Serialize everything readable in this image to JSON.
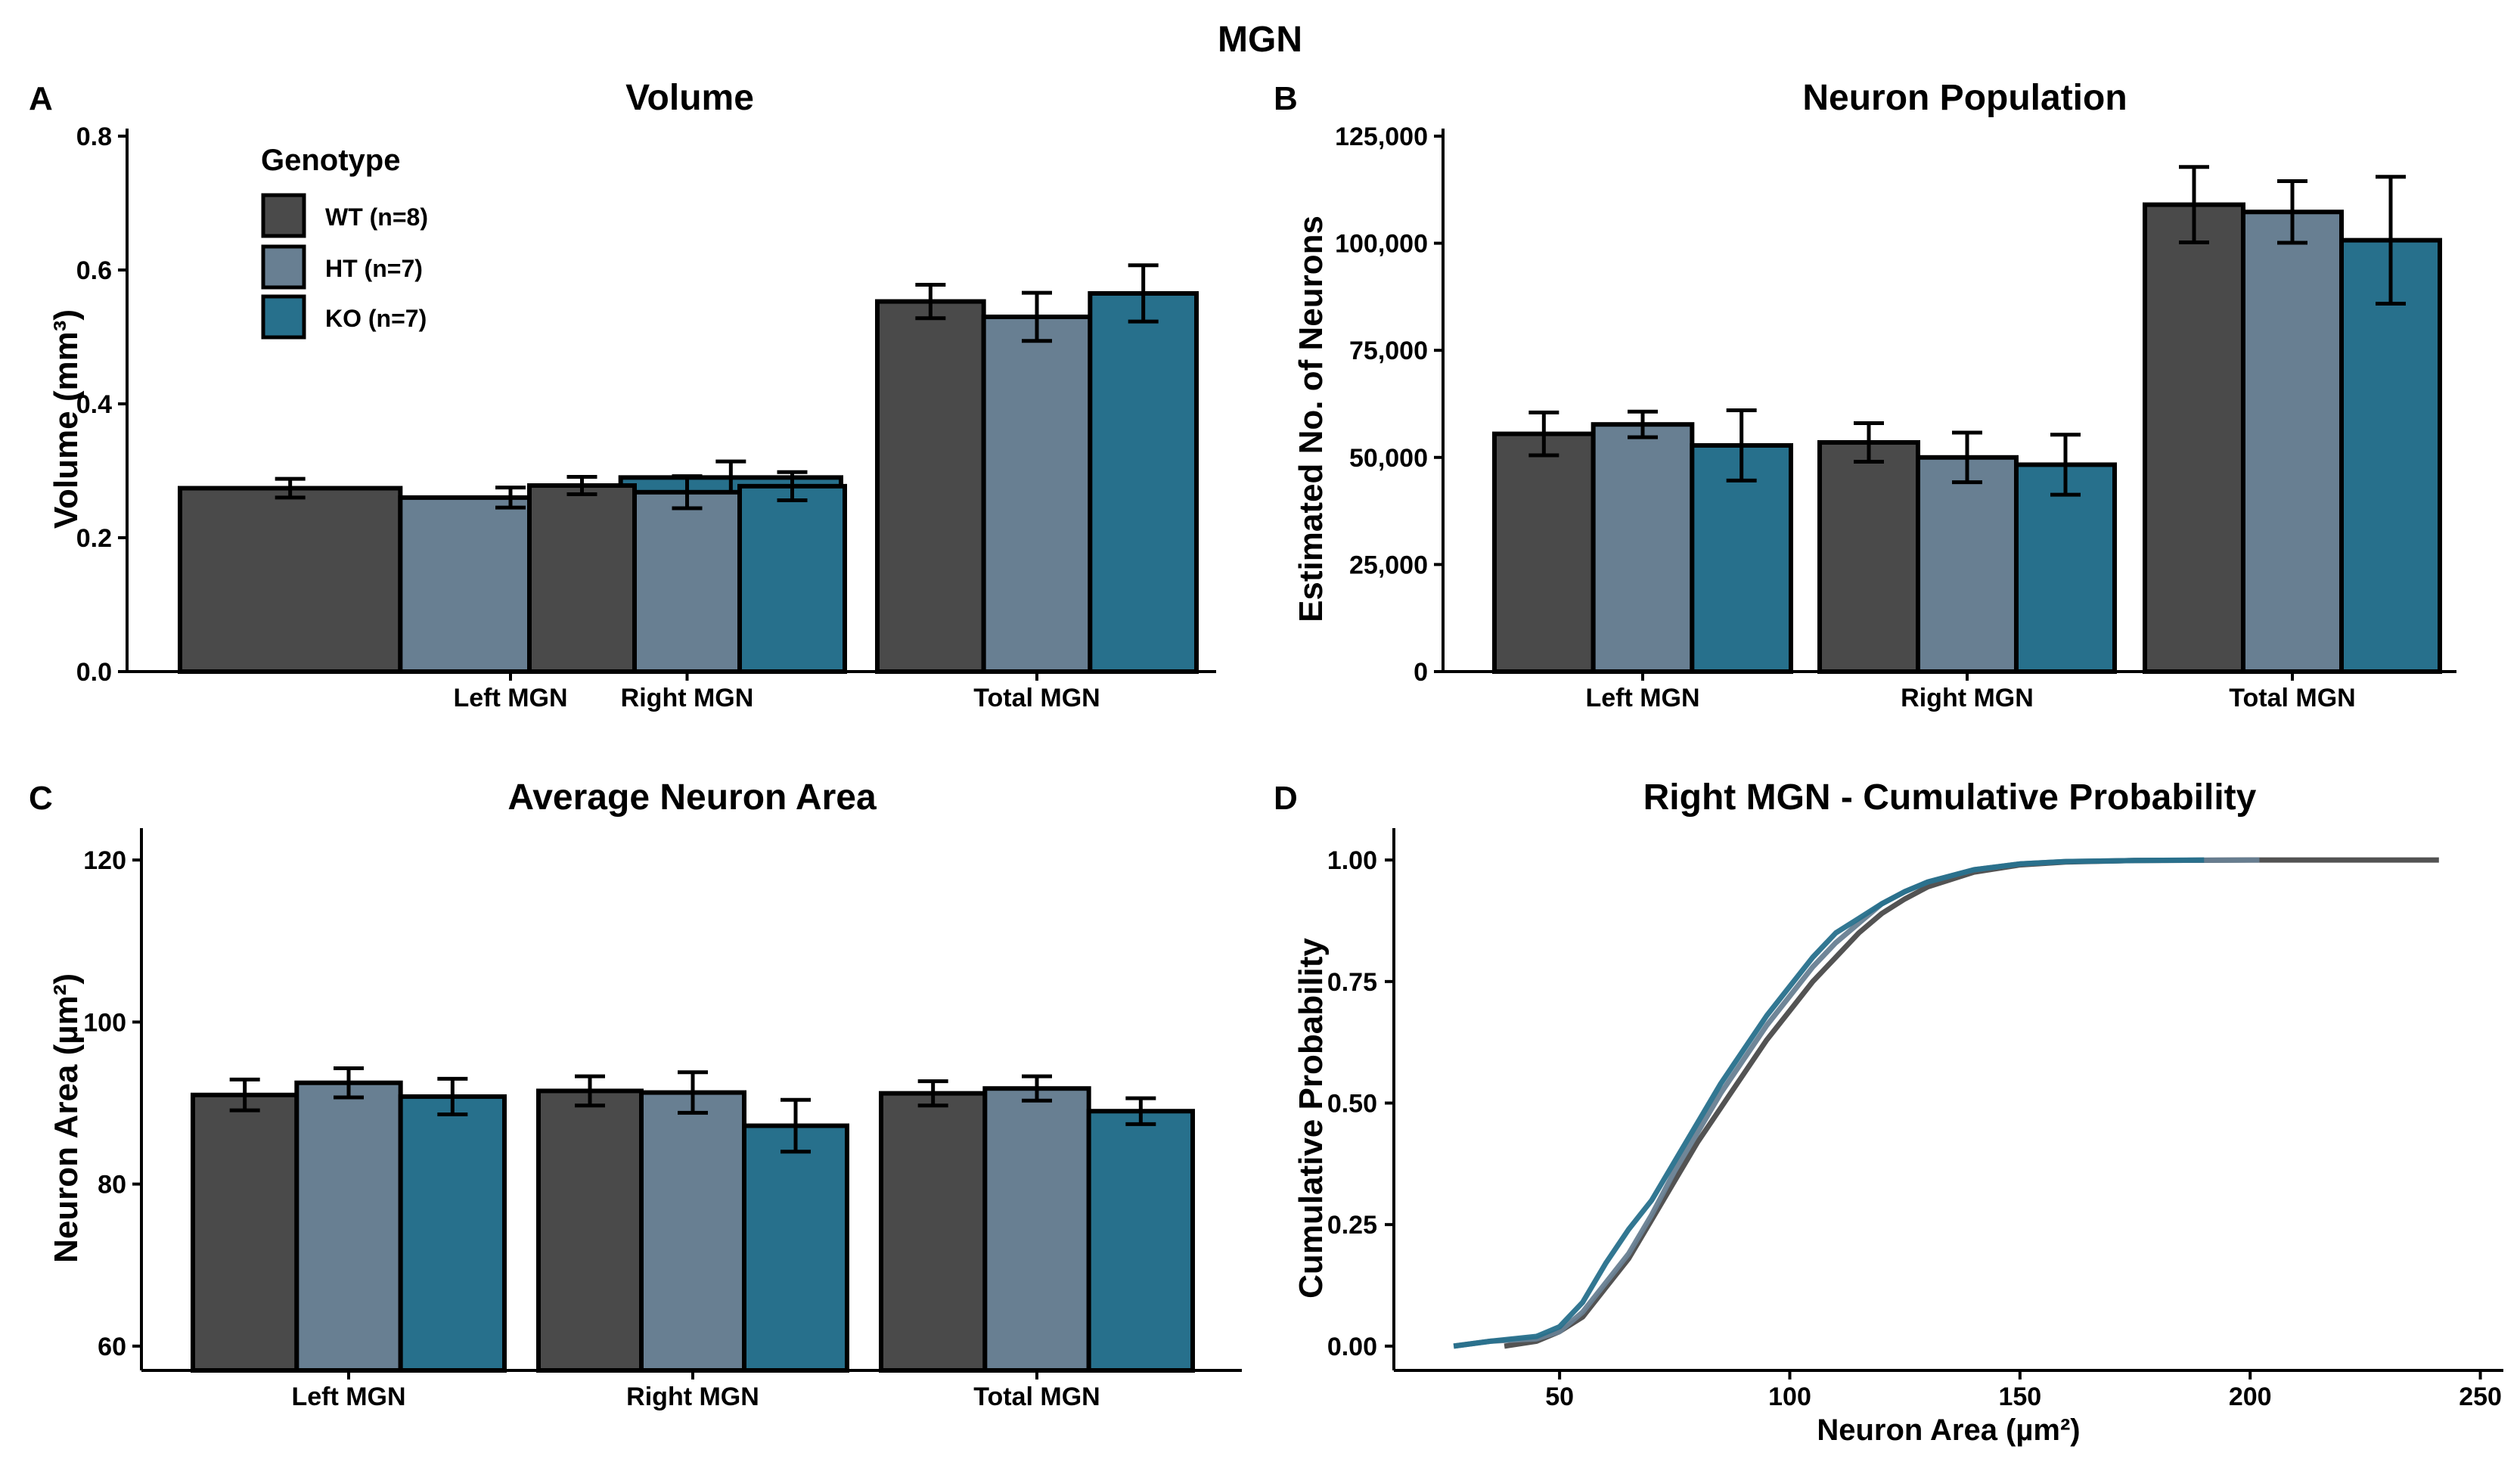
{
  "figure_title": "MGN",
  "colors": {
    "WT": "#4a4a4a",
    "HT": "#687f92",
    "KO": "#27708c",
    "error_bar": "#000000",
    "axis": "#000000"
  },
  "legend": {
    "title": "Genotype",
    "items": [
      {
        "key": "WT",
        "label": "WT (n=8)"
      },
      {
        "key": "HT",
        "label": "HT (n=7)"
      },
      {
        "key": "KO",
        "label": "KO (n=7)"
      }
    ]
  },
  "chart_data": [
    {
      "panel": "A",
      "type": "bar",
      "title": "Volume",
      "ylabel": "Volume (mm³)",
      "xlabel": "",
      "ylim": [
        0,
        0.8
      ],
      "yticks": [
        0.0,
        0.2,
        0.4,
        0.6,
        0.8
      ],
      "ytick_labels": [
        "0.0",
        "0.2",
        "0.4",
        "0.6",
        "0.8"
      ],
      "categories": [
        "Left MGN",
        "Right MGN",
        "Total MGN"
      ],
      "series": [
        {
          "name": "WT",
          "values": [
            0.274,
            0.278,
            0.553
          ],
          "errors": [
            0.014,
            0.013,
            0.025
          ]
        },
        {
          "name": "HT",
          "values": [
            0.26,
            0.268,
            0.53
          ],
          "errors": [
            0.015,
            0.024,
            0.036
          ]
        },
        {
          "name": "KO",
          "values": [
            0.29,
            0.277,
            0.565
          ],
          "errors": [
            0.024,
            0.021,
            0.042
          ]
        }
      ],
      "legend_position": "top-left"
    },
    {
      "panel": "B",
      "type": "bar",
      "title": "Neuron Population",
      "ylabel": "Estimated No. of Neurons",
      "xlabel": "",
      "ylim": [
        0,
        125000
      ],
      "yticks": [
        0,
        25000,
        50000,
        75000,
        100000,
        125000
      ],
      "ytick_labels": [
        "0",
        "25,000",
        "50,000",
        "75,000",
        "100,000",
        "125,000"
      ],
      "categories": [
        "Left MGN",
        "Right MGN",
        "Total MGN"
      ],
      "series": [
        {
          "name": "WT",
          "values": [
            55500,
            53500,
            109000
          ],
          "errors": [
            5000,
            4500,
            8800
          ]
        },
        {
          "name": "HT",
          "values": [
            57700,
            50000,
            107300
          ],
          "errors": [
            3000,
            5800,
            7200
          ]
        },
        {
          "name": "KO",
          "values": [
            52800,
            48300,
            100700
          ],
          "errors": [
            8200,
            7000,
            14800
          ]
        }
      ]
    },
    {
      "panel": "C",
      "type": "bar",
      "title": "Average Neuron Area",
      "ylabel": "Neuron Area (µm²)",
      "xlabel": "",
      "ylim": [
        57,
        123
      ],
      "yticks": [
        60,
        80,
        100,
        120
      ],
      "ytick_labels": [
        "60",
        "80",
        "100",
        "120"
      ],
      "categories": [
        "Left MGN",
        "Right MGN",
        "Total MGN"
      ],
      "series": [
        {
          "name": "WT",
          "values": [
            91.0,
            91.5,
            91.2
          ],
          "errors": [
            1.9,
            1.8,
            1.5
          ]
        },
        {
          "name": "HT",
          "values": [
            92.5,
            91.3,
            91.8
          ],
          "errors": [
            1.8,
            2.5,
            1.5
          ]
        },
        {
          "name": "KO",
          "values": [
            90.8,
            87.2,
            89.0
          ],
          "errors": [
            2.2,
            3.2,
            1.6
          ]
        }
      ]
    },
    {
      "panel": "D",
      "type": "line",
      "title": "Right MGN - Cumulative Probability",
      "ylabel": "Cumulative Probability",
      "xlabel": "Neuron Area (µm²)",
      "xlim": [
        14,
        255
      ],
      "ylim": [
        -0.05,
        1.05
      ],
      "xticks": [
        50,
        100,
        150,
        200,
        250
      ],
      "xtick_labels": [
        "50",
        "100",
        "150",
        "200",
        "250"
      ],
      "yticks": [
        0,
        0.25,
        0.5,
        0.75,
        1.0
      ],
      "ytick_labels": [
        "0.00",
        "0.25",
        "0.50",
        "0.75",
        "1.00"
      ],
      "series": [
        {
          "name": "WT",
          "x": [
            38,
            45,
            50,
            55,
            60,
            65,
            70,
            75,
            80,
            85,
            90,
            95,
            100,
            105,
            110,
            115,
            120,
            125,
            130,
            140,
            150,
            160,
            175,
            200,
            241
          ],
          "y": [
            0.0,
            0.01,
            0.03,
            0.06,
            0.12,
            0.18,
            0.26,
            0.34,
            0.42,
            0.49,
            0.56,
            0.63,
            0.69,
            0.75,
            0.8,
            0.85,
            0.89,
            0.92,
            0.945,
            0.975,
            0.99,
            0.996,
            0.999,
            1.0,
            1.0
          ]
        },
        {
          "name": "HT",
          "x": [
            27,
            35,
            45,
            50,
            55,
            60,
            65,
            70,
            75,
            80,
            85,
            90,
            95,
            100,
            105,
            110,
            115,
            120,
            125,
            130,
            140,
            150,
            160,
            175,
            202
          ],
          "y": [
            0.0,
            0.01,
            0.015,
            0.03,
            0.07,
            0.13,
            0.19,
            0.27,
            0.36,
            0.44,
            0.52,
            0.59,
            0.66,
            0.72,
            0.78,
            0.83,
            0.87,
            0.91,
            0.935,
            0.955,
            0.98,
            0.992,
            0.997,
            0.999,
            1.0
          ]
        },
        {
          "name": "KO",
          "x": [
            27,
            35,
            45,
            50,
            55,
            60,
            65,
            70,
            75,
            80,
            85,
            90,
            95,
            100,
            105,
            110,
            115,
            120,
            125,
            130,
            140,
            150,
            160,
            175,
            190
          ],
          "y": [
            0.0,
            0.01,
            0.02,
            0.04,
            0.09,
            0.17,
            0.24,
            0.3,
            0.38,
            0.46,
            0.54,
            0.61,
            0.68,
            0.74,
            0.8,
            0.85,
            0.88,
            0.91,
            0.935,
            0.955,
            0.98,
            0.992,
            0.997,
            0.999,
            1.0
          ]
        }
      ]
    }
  ]
}
